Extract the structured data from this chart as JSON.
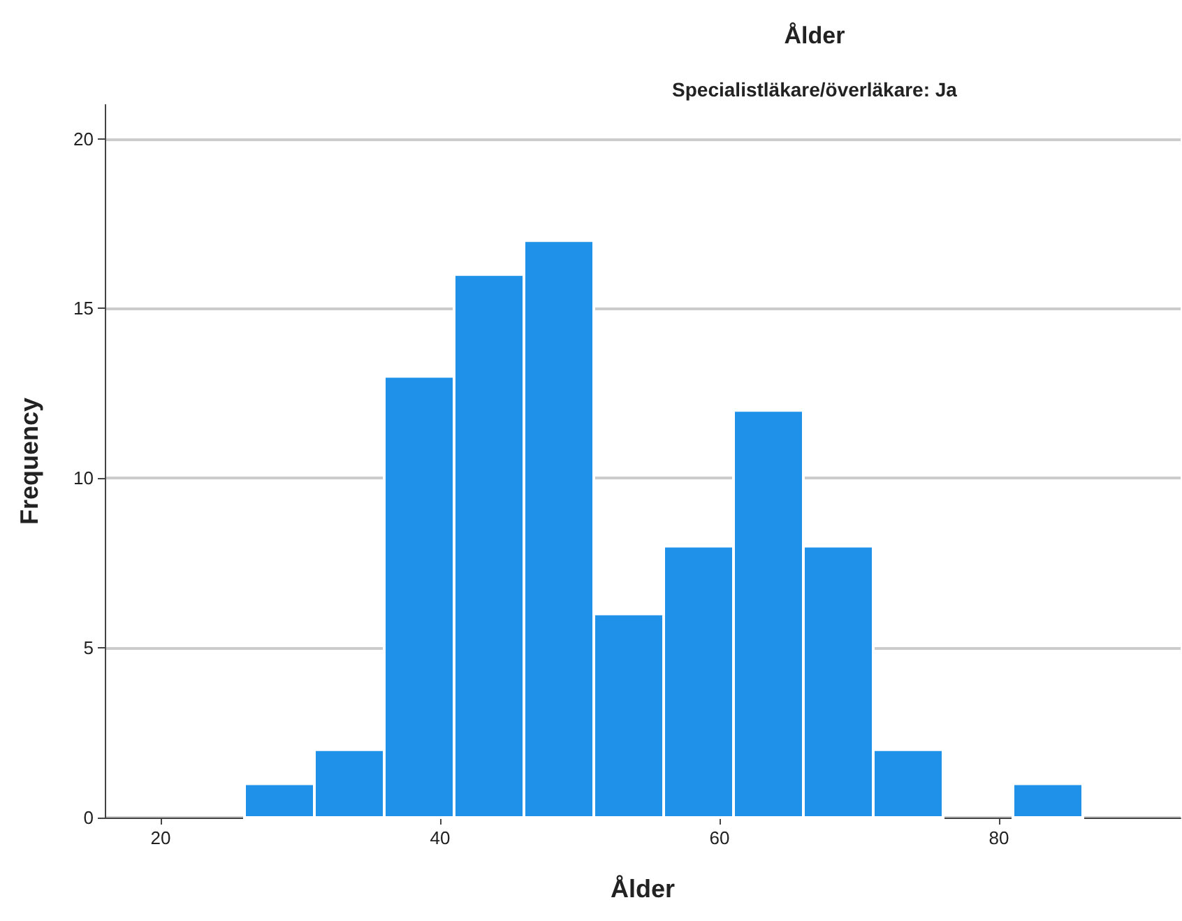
{
  "chart_data": {
    "type": "histogram",
    "title": "Ålder",
    "subtitle": "Specialistläkare/överläkare: Ja",
    "xlabel": "Ålder",
    "ylabel": "Frequency",
    "bins": [
      26,
      31,
      36,
      41,
      46,
      51,
      56,
      61,
      66,
      71,
      76,
      81,
      86
    ],
    "values": [
      1,
      2,
      13,
      16,
      17,
      6,
      8,
      12,
      8,
      2,
      0,
      1
    ],
    "color": "#1f91e8",
    "xlim": [
      16,
      93
    ],
    "xticks": [
      20,
      40,
      60,
      80
    ],
    "ylim": [
      0,
      21
    ],
    "yticks": [
      0,
      5,
      10,
      15,
      20
    ],
    "grid": "y"
  }
}
